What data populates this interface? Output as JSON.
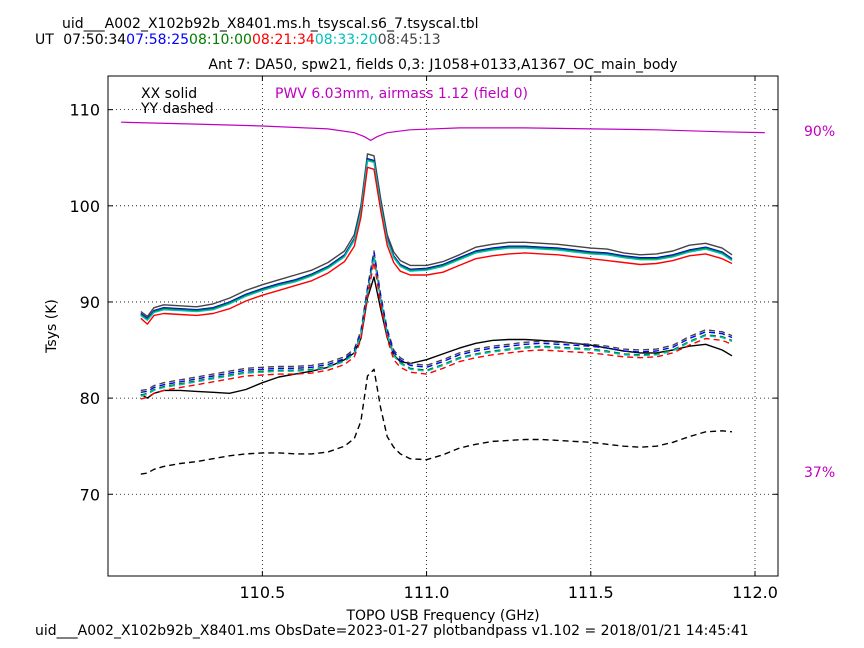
{
  "header": {
    "filename": "uid___A002_X102b92b_X8401.ms.h_tsyscal.s6_7.tsyscal.tbl",
    "ut_label": "UT",
    "times": [
      {
        "text": "07:50:34",
        "color": "#000000"
      },
      {
        "text": "07:58:25",
        "color": "#0000ff"
      },
      {
        "text": "08:10:00",
        "color": "#008000"
      },
      {
        "text": "08:21:34",
        "color": "#ff0000"
      },
      {
        "text": "08:33:20",
        "color": "#00bfbf"
      },
      {
        "text": "08:45:13",
        "color": "#444444"
      }
    ]
  },
  "footer": {
    "text": "uid___A002_X102b92b_X8401.ms  ObsDate=2023-01-27   plotbandpass v1.102 = 2018/01/21 14:45:41"
  },
  "chart_data": {
    "type": "line",
    "title": "Ant 7: DA50,  spw21,  fields 0,3: J1058+0133,A1367_OC_main_body",
    "xlabel": "TOPO USB Frequency (GHz)",
    "ylabel": "Tsys (K)",
    "xlim": [
      110.03,
      112.07
    ],
    "ylim": [
      61.5,
      113.5
    ],
    "xticks": [
      110.5,
      111.0,
      111.5,
      112.0
    ],
    "xtick_labels": [
      "110.5",
      "111.0",
      "111.5",
      "112.0"
    ],
    "yticks": [
      70,
      80,
      90,
      100,
      110
    ],
    "ytick_labels": [
      "70",
      "80",
      "90",
      "100",
      "110"
    ],
    "grid": true,
    "legend": {
      "line1": "XX solid",
      "line2": "YY dashed",
      "position": "top-left"
    },
    "annotation": {
      "text": "PWV 6.03mm, airmass 1.12 (field 0)",
      "color": "#c000c0"
    },
    "right_axis": {
      "top_label": "90%",
      "bottom_label": "37%",
      "color": "#c000c0"
    },
    "transmission": {
      "color": "#c000c0",
      "x": [
        110.07,
        110.3,
        110.5,
        110.7,
        110.78,
        110.81,
        110.83,
        110.85,
        110.88,
        110.95,
        111.1,
        111.3,
        111.5,
        111.7,
        111.9,
        112.03
      ],
      "y": [
        108.7,
        108.5,
        108.3,
        108.0,
        107.6,
        107.2,
        106.8,
        107.2,
        107.6,
        107.9,
        108.1,
        108.1,
        108.0,
        107.9,
        107.7,
        107.6
      ]
    },
    "x": [
      110.13,
      110.15,
      110.17,
      110.2,
      110.25,
      110.3,
      110.35,
      110.4,
      110.45,
      110.5,
      110.55,
      110.6,
      110.65,
      110.7,
      110.75,
      110.78,
      110.8,
      110.82,
      110.84,
      110.86,
      110.88,
      110.9,
      110.92,
      110.95,
      111.0,
      111.05,
      111.1,
      111.15,
      111.2,
      111.25,
      111.3,
      111.35,
      111.4,
      111.45,
      111.5,
      111.55,
      111.6,
      111.65,
      111.7,
      111.75,
      111.8,
      111.85,
      111.9,
      111.93
    ],
    "series": [
      {
        "pol": "XX",
        "color": "#444444",
        "dash": false,
        "values": [
          89.0,
          88.5,
          89.4,
          89.7,
          89.6,
          89.5,
          89.8,
          90.4,
          91.2,
          91.8,
          92.3,
          92.8,
          93.3,
          94.1,
          95.3,
          97.0,
          100.0,
          105.4,
          105.2,
          100.8,
          97.0,
          95.2,
          94.3,
          93.8,
          93.8,
          94.2,
          94.9,
          95.7,
          96.0,
          96.2,
          96.2,
          96.1,
          96.0,
          95.8,
          95.6,
          95.5,
          95.1,
          94.9,
          95.0,
          95.3,
          95.9,
          96.1,
          95.6,
          94.9
        ]
      },
      {
        "pol": "XX",
        "color": "#0000ff",
        "dash": false,
        "values": [
          88.8,
          88.3,
          89.1,
          89.4,
          89.3,
          89.2,
          89.4,
          90.0,
          90.8,
          91.4,
          91.9,
          92.3,
          92.9,
          93.7,
          94.9,
          96.6,
          99.6,
          104.9,
          104.7,
          100.3,
          96.6,
          94.8,
          93.9,
          93.4,
          93.5,
          93.9,
          94.6,
          95.3,
          95.6,
          95.8,
          95.8,
          95.7,
          95.6,
          95.4,
          95.2,
          95.1,
          94.8,
          94.6,
          94.6,
          94.9,
          95.4,
          95.7,
          95.2,
          94.5
        ]
      },
      {
        "pol": "XX",
        "color": "#008000",
        "dash": false,
        "values": [
          88.7,
          88.2,
          89.0,
          89.3,
          89.2,
          89.1,
          89.3,
          89.9,
          90.7,
          91.3,
          91.8,
          92.2,
          92.8,
          93.6,
          94.8,
          96.5,
          99.5,
          104.8,
          104.6,
          100.2,
          96.5,
          94.7,
          93.8,
          93.3,
          93.4,
          93.8,
          94.5,
          95.2,
          95.5,
          95.7,
          95.7,
          95.6,
          95.5,
          95.3,
          95.1,
          95.0,
          94.7,
          94.5,
          94.5,
          94.8,
          95.3,
          95.6,
          95.1,
          94.4
        ]
      },
      {
        "pol": "XX",
        "color": "#00bfbf",
        "dash": false,
        "values": [
          88.6,
          88.1,
          88.9,
          89.2,
          89.1,
          89.0,
          89.2,
          89.8,
          90.6,
          91.2,
          91.7,
          92.1,
          92.7,
          93.5,
          94.7,
          96.4,
          99.4,
          104.7,
          104.5,
          100.1,
          96.4,
          94.6,
          93.7,
          93.2,
          93.3,
          93.7,
          94.4,
          95.1,
          95.4,
          95.6,
          95.6,
          95.5,
          95.4,
          95.2,
          95.0,
          94.9,
          94.6,
          94.4,
          94.4,
          94.7,
          95.2,
          95.5,
          95.0,
          94.3
        ]
      },
      {
        "pol": "XX",
        "color": "#ff0000",
        "dash": false,
        "values": [
          88.3,
          87.7,
          88.6,
          88.8,
          88.7,
          88.6,
          88.8,
          89.3,
          90.1,
          90.7,
          91.2,
          91.7,
          92.2,
          93.0,
          94.2,
          95.8,
          98.8,
          104.0,
          103.8,
          99.6,
          95.9,
          94.1,
          93.2,
          92.8,
          92.8,
          93.1,
          93.8,
          94.5,
          94.8,
          95.0,
          95.1,
          95.0,
          94.9,
          94.7,
          94.5,
          94.3,
          94.1,
          93.9,
          94.0,
          94.3,
          94.8,
          95.0,
          94.5,
          94.0
        ]
      },
      {
        "pol": "XX",
        "color": "#000000",
        "dash": false,
        "values": [
          80.4,
          80.0,
          80.5,
          80.8,
          80.8,
          80.7,
          80.6,
          80.5,
          80.9,
          81.6,
          82.2,
          82.5,
          82.8,
          83.2,
          84.0,
          84.7,
          86.2,
          90.4,
          92.6,
          89.3,
          86.3,
          84.5,
          83.8,
          83.6,
          84.0,
          84.6,
          85.2,
          85.7,
          86.0,
          86.1,
          86.1,
          86.0,
          85.9,
          85.7,
          85.5,
          85.2,
          84.9,
          84.7,
          84.7,
          85.0,
          85.4,
          85.6,
          85.0,
          84.4
        ]
      },
      {
        "pol": "YY",
        "color": "#444444",
        "dash": true,
        "values": [
          80.8,
          80.9,
          81.3,
          81.6,
          81.9,
          82.2,
          82.5,
          82.8,
          83.1,
          83.2,
          83.3,
          83.3,
          83.4,
          83.7,
          84.3,
          85.1,
          87.0,
          91.5,
          95.3,
          90.8,
          87.2,
          85.0,
          84.2,
          83.6,
          83.4,
          84.0,
          84.7,
          85.1,
          85.4,
          85.6,
          85.8,
          85.9,
          85.8,
          85.7,
          85.6,
          85.4,
          85.1,
          85.0,
          85.1,
          85.5,
          86.4,
          87.1,
          86.9,
          86.5
        ]
      },
      {
        "pol": "YY",
        "color": "#0000ff",
        "dash": true,
        "values": [
          80.6,
          80.7,
          81.1,
          81.4,
          81.7,
          82.0,
          82.3,
          82.6,
          82.9,
          83.0,
          83.1,
          83.1,
          83.2,
          83.5,
          84.1,
          84.9,
          86.8,
          91.3,
          95.1,
          90.6,
          87.0,
          84.8,
          84.0,
          83.4,
          83.2,
          83.8,
          84.5,
          84.9,
          85.2,
          85.4,
          85.6,
          85.7,
          85.6,
          85.5,
          85.4,
          85.2,
          84.9,
          84.8,
          84.9,
          85.3,
          86.2,
          86.9,
          86.7,
          86.3
        ]
      },
      {
        "pol": "YY",
        "color": "#008000",
        "dash": true,
        "values": [
          80.3,
          80.5,
          80.9,
          81.2,
          81.5,
          81.8,
          82.1,
          82.4,
          82.7,
          82.8,
          82.9,
          82.9,
          83.0,
          83.3,
          83.9,
          84.7,
          86.6,
          91.0,
          94.8,
          90.3,
          86.7,
          84.5,
          83.7,
          83.1,
          82.9,
          83.5,
          84.2,
          84.6,
          84.9,
          85.1,
          85.3,
          85.4,
          85.3,
          85.2,
          85.1,
          84.9,
          84.6,
          84.5,
          84.6,
          85.0,
          85.9,
          86.6,
          86.4,
          86.0
        ]
      },
      {
        "pol": "YY",
        "color": "#00bfbf",
        "dash": true,
        "values": [
          80.2,
          80.4,
          80.8,
          81.1,
          81.4,
          81.7,
          82.0,
          82.3,
          82.6,
          82.7,
          82.8,
          82.8,
          82.9,
          83.2,
          83.8,
          84.6,
          86.5,
          90.9,
          94.7,
          90.2,
          86.6,
          84.4,
          83.6,
          83.0,
          82.8,
          83.4,
          84.1,
          84.5,
          84.8,
          85.0,
          85.2,
          85.3,
          85.2,
          85.1,
          85.0,
          84.8,
          84.5,
          84.4,
          84.5,
          84.9,
          85.8,
          86.5,
          86.3,
          85.9
        ]
      },
      {
        "pol": "YY",
        "color": "#ff0000",
        "dash": true,
        "values": [
          79.9,
          80.1,
          80.5,
          80.8,
          81.1,
          81.4,
          81.7,
          82.0,
          82.3,
          82.4,
          82.5,
          82.5,
          82.6,
          82.9,
          83.5,
          84.3,
          86.1,
          90.5,
          94.2,
          89.8,
          86.2,
          84.0,
          83.2,
          82.7,
          82.5,
          83.1,
          83.8,
          84.2,
          84.5,
          84.7,
          84.9,
          85.0,
          84.9,
          84.8,
          84.7,
          84.5,
          84.3,
          84.2,
          84.3,
          84.7,
          85.5,
          86.2,
          86.0,
          85.6
        ]
      },
      {
        "pol": "YY",
        "color": "#000000",
        "dash": true,
        "values": [
          72.1,
          72.2,
          72.6,
          72.9,
          73.2,
          73.4,
          73.7,
          74.0,
          74.2,
          74.3,
          74.3,
          74.2,
          74.2,
          74.4,
          75.0,
          75.8,
          77.6,
          82.3,
          83.0,
          79.0,
          76.0,
          74.9,
          74.2,
          73.7,
          73.6,
          74.1,
          74.8,
          75.2,
          75.5,
          75.6,
          75.7,
          75.7,
          75.6,
          75.5,
          75.4,
          75.2,
          75.0,
          74.9,
          75.0,
          75.4,
          76.0,
          76.5,
          76.6,
          76.5
        ]
      }
    ]
  }
}
